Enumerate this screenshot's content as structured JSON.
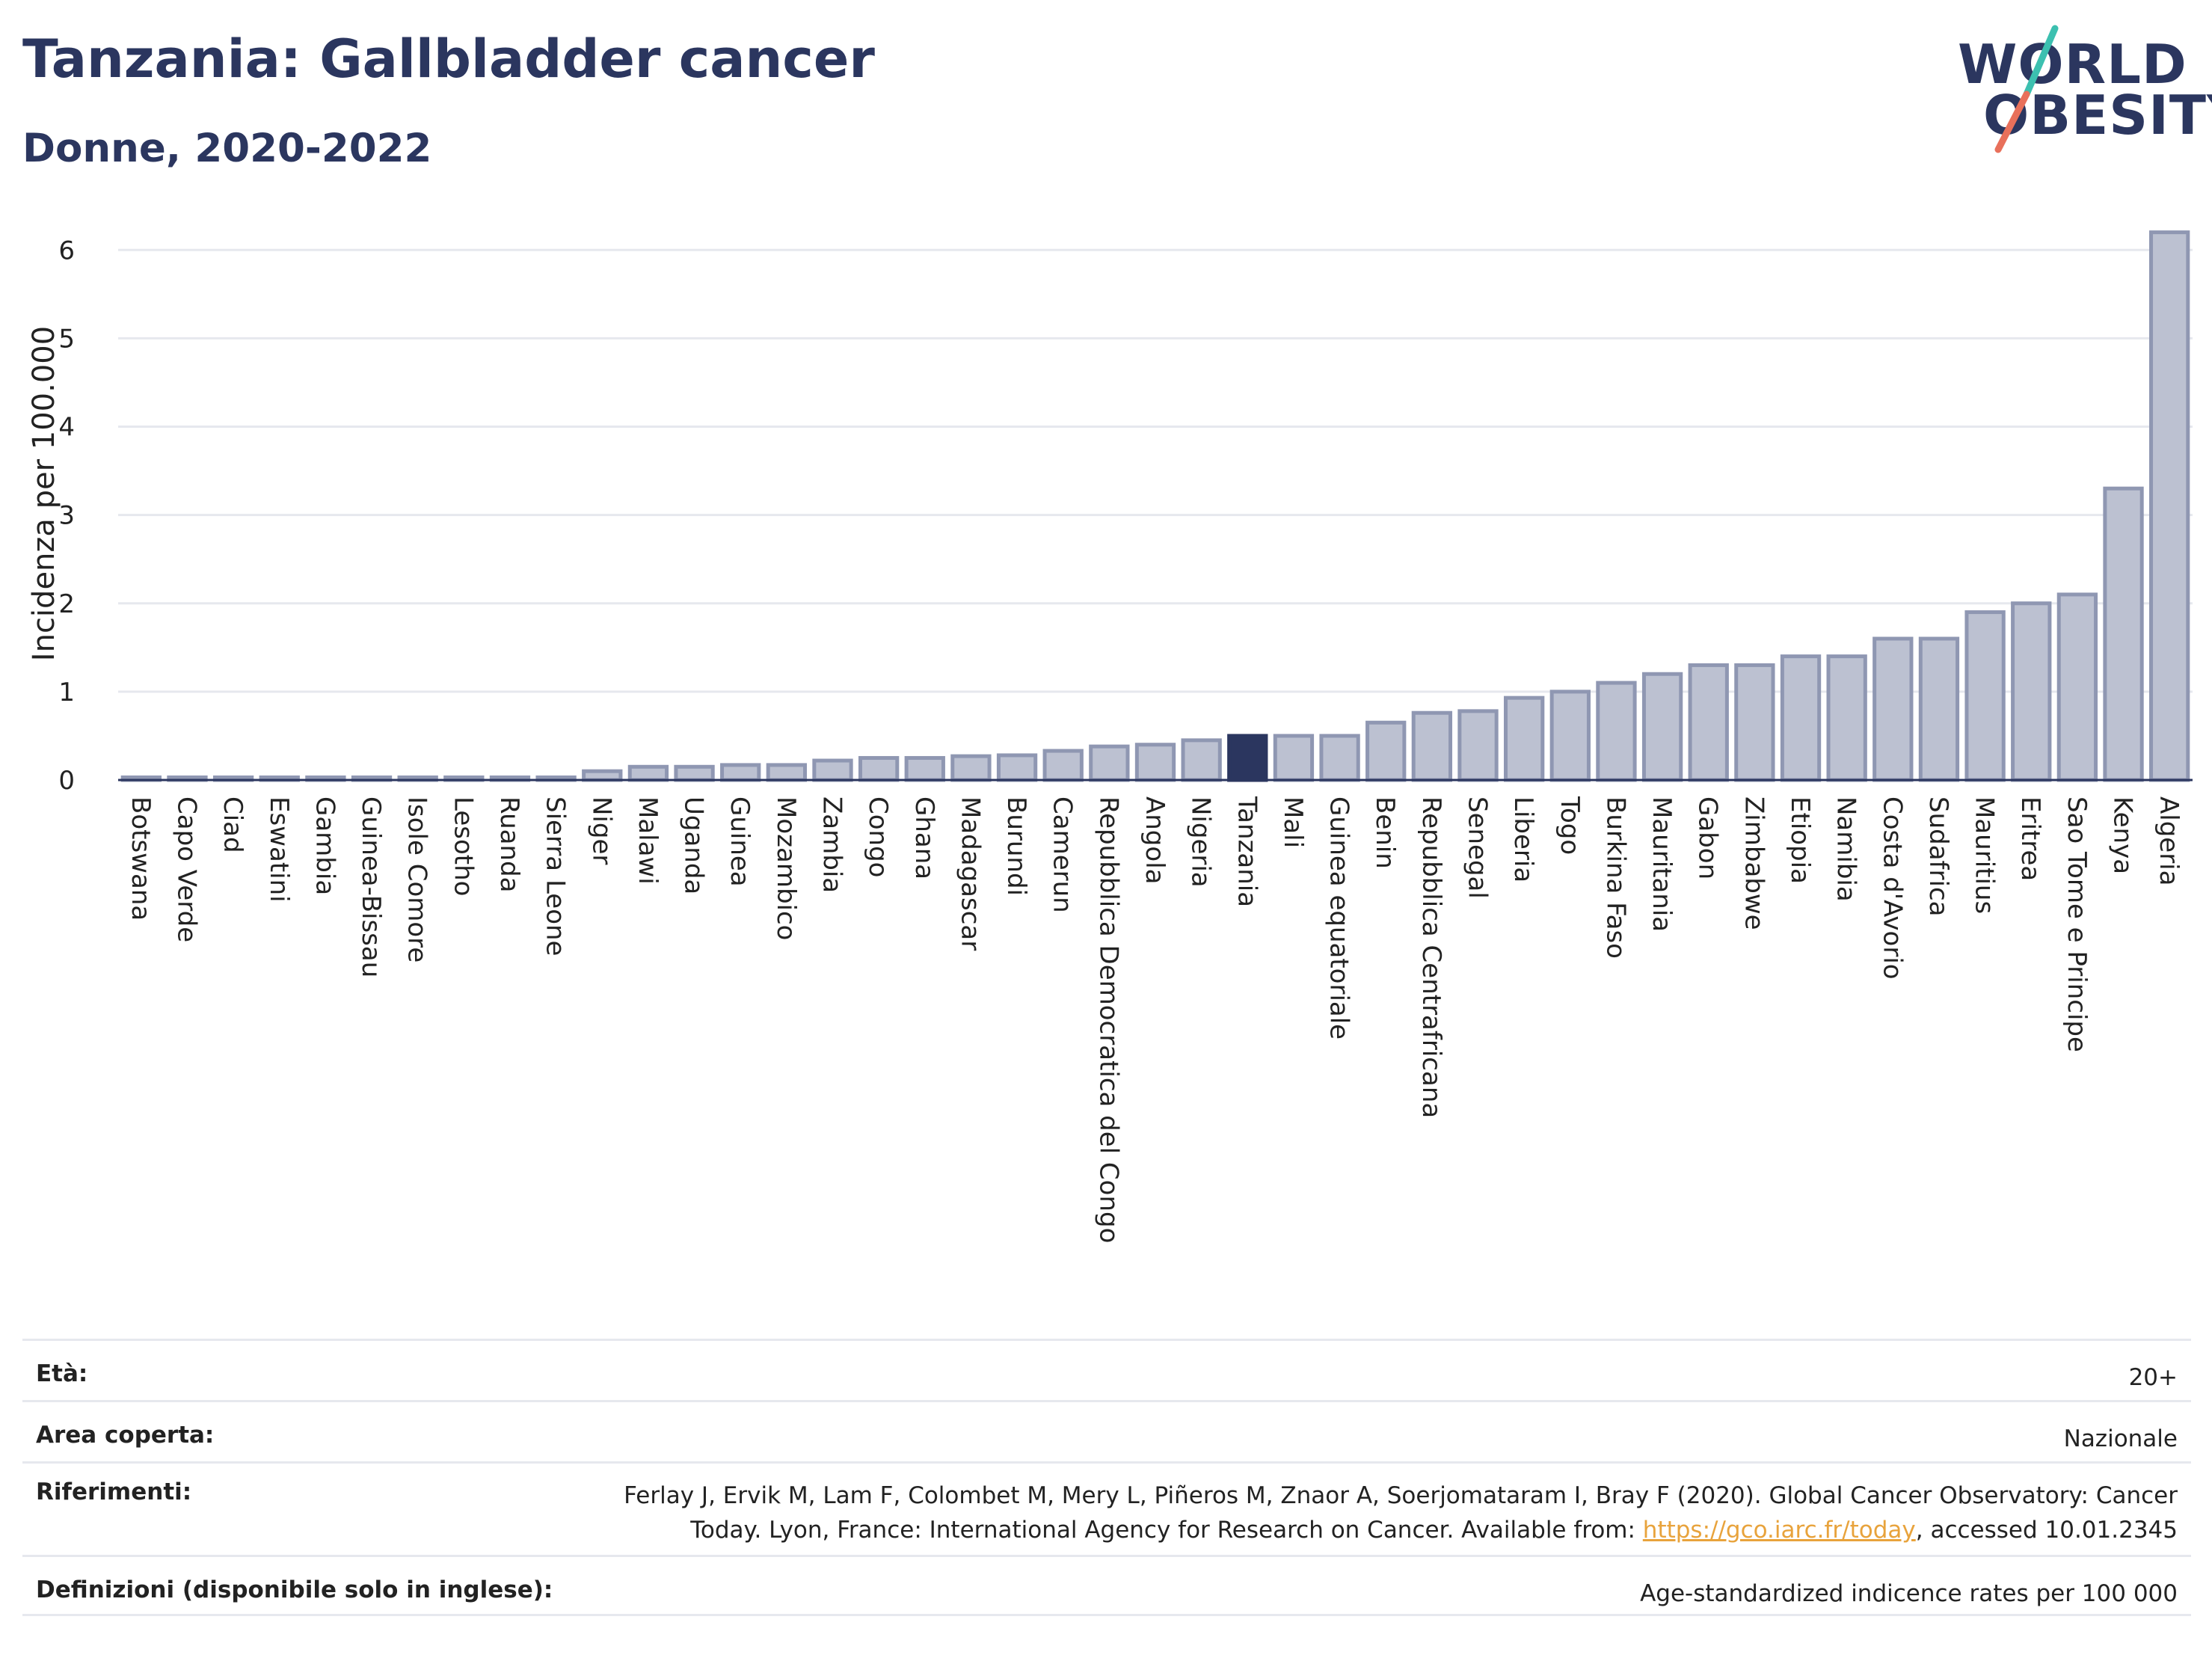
{
  "header": {
    "title": "Tanzania: Gallbladder cancer",
    "subtitle": "Donne, 2020-2022"
  },
  "logo": {
    "line1": "WORLD",
    "line2": "OBESITY",
    "colors": [
      "#2b365f",
      "#3cc0b0",
      "#e8705b"
    ]
  },
  "colors": {
    "bar": "#bcc1d1",
    "bar_stroke": "#8f97b2",
    "highlight": "#2b365f",
    "grid": "#e6e8ee",
    "axis": "#2b365f"
  },
  "chart_data": {
    "type": "bar",
    "ylabel": "Incidenza per 100.000",
    "ylim": [
      0,
      6.4
    ],
    "yticks": [
      0,
      1,
      2,
      3,
      4,
      5,
      6
    ],
    "grid": true,
    "highlight": "Tanzania",
    "categories": [
      "Botswana",
      "Capo Verde",
      "Ciad",
      "Eswatini",
      "Gambia",
      "Guinea-Bissau",
      "Isole Comore",
      "Lesotho",
      "Ruanda",
      "Sierra Leone",
      "Niger",
      "Malawi",
      "Uganda",
      "Guinea",
      "Mozambico",
      "Zambia",
      "Congo",
      "Ghana",
      "Madagascar",
      "Burundi",
      "Camerun",
      "Repubblica Democratica del Congo",
      "Angola",
      "Nigeria",
      "Tanzania",
      "Mali",
      "Guinea equatoriale",
      "Benin",
      "Repubblica Centrafricana",
      "Senegal",
      "Liberia",
      "Togo",
      "Burkina Faso",
      "Mauritania",
      "Gabon",
      "Zimbabwe",
      "Etiopia",
      "Namibia",
      "Costa d'Avorio",
      "Sudafrica",
      "Mauritius",
      "Eritrea",
      "Sao Tome e Principe",
      "Kenya",
      "Algeria"
    ],
    "values": [
      0.03,
      0.03,
      0.03,
      0.03,
      0.03,
      0.03,
      0.03,
      0.03,
      0.03,
      0.03,
      0.1,
      0.15,
      0.15,
      0.17,
      0.17,
      0.22,
      0.25,
      0.25,
      0.27,
      0.28,
      0.33,
      0.38,
      0.4,
      0.45,
      0.5,
      0.5,
      0.5,
      0.65,
      0.76,
      0.78,
      0.93,
      1.0,
      1.1,
      1.2,
      1.3,
      1.3,
      1.4,
      1.4,
      1.6,
      1.6,
      1.9,
      2.0,
      2.1,
      3.3,
      6.2
    ]
  },
  "meta": {
    "age_label": "Età:",
    "age_value": "20+",
    "area_label": "Area coperta:",
    "area_value": "Nazionale",
    "refs_label": "Riferimenti:",
    "refs_line1": "Ferlay J, Ervik M, Lam F, Colombet M, Mery L, Piñeros M, Znaor A, Soerjomataram I, Bray F (2020). Global Cancer Observatory: Cancer",
    "refs_line2_pre": "Today. Lyon, France: International Agency for Research on Cancer. Available from:",
    "refs_link": "https://gco.iarc.fr/today",
    "refs_line2_post": ", accessed 10.01.2345",
    "defs_label": "Definizioni (disponibile solo in inglese):",
    "defs_value": "Age-standardized indicence rates per 100 000"
  }
}
